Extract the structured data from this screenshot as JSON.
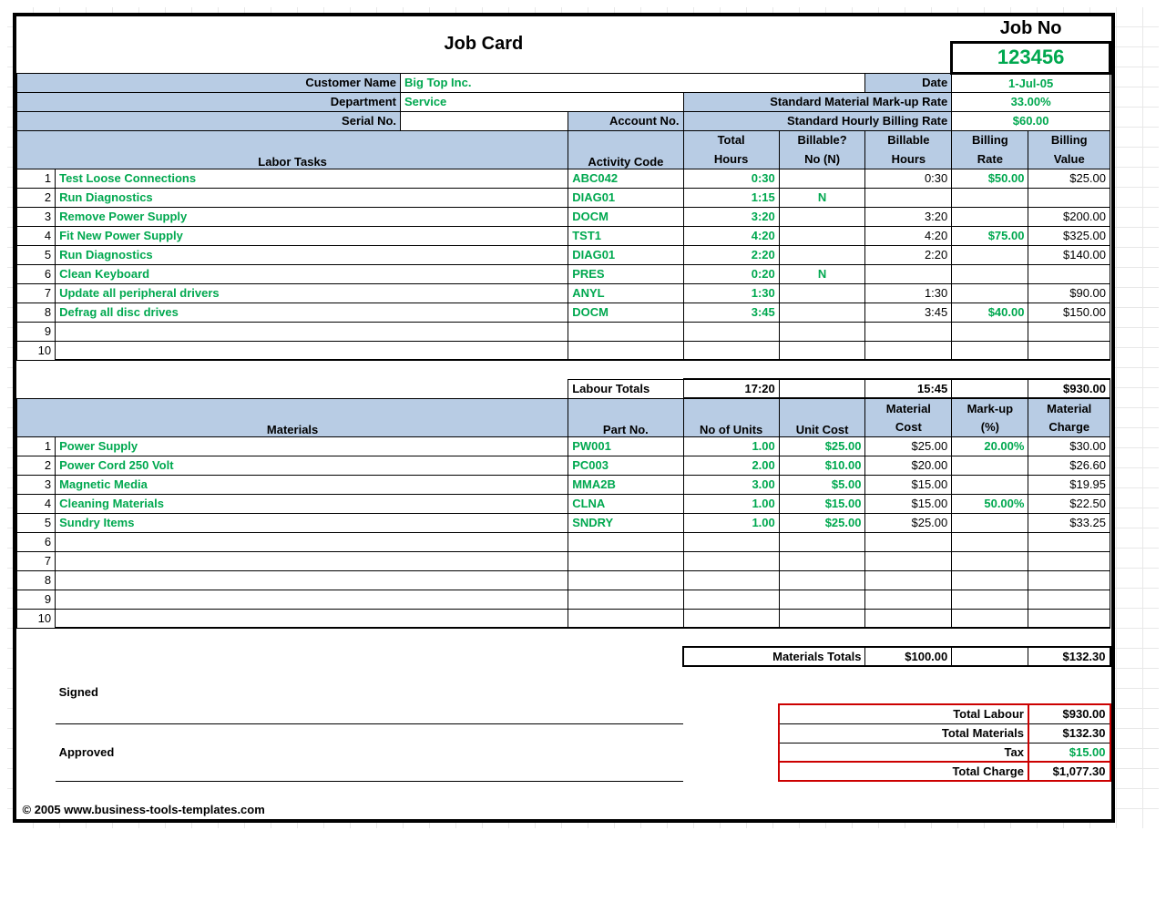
{
  "doc": {
    "title": "Job Card",
    "job_no_label": "Job No",
    "job_no": "123456",
    "copyright": "© 2005 www.business-tools-templates.com"
  },
  "fields": {
    "customer_name_label": "Customer Name",
    "customer_name": "Big Top Inc.",
    "department_label": "Department",
    "department": "Service",
    "serial_no_label": "Serial No.",
    "account_no_label": "Account No.",
    "date_label": "Date",
    "date": "1-Jul-05",
    "markup_rate_label": "Standard Material Mark-up Rate",
    "markup_rate": "33.00%",
    "hourly_rate_label": "Standard Hourly Billing Rate",
    "hourly_rate": "$60.00"
  },
  "labor": {
    "headers": {
      "tasks": "Labor Tasks",
      "activity_code": "Activity Code",
      "total_hours": "Total Hours",
      "billable_no_top": "Billable?",
      "billable_no_bot": "No (N)",
      "billable_hours": "Billable Hours",
      "billing_rate": "Billing Rate",
      "billing_value": "Billing Value"
    },
    "rows": [
      {
        "n": "1",
        "task": "Test Loose Connections",
        "code": "ABC042",
        "total": "0:30",
        "nob": "",
        "bill": "0:30",
        "rate": "$50.00",
        "val": "$25.00"
      },
      {
        "n": "2",
        "task": "Run Diagnostics",
        "code": "DIAG01",
        "total": "1:15",
        "nob": "N",
        "bill": "",
        "rate": "",
        "val": ""
      },
      {
        "n": "3",
        "task": "Remove Power Supply",
        "code": "DOCM",
        "total": "3:20",
        "nob": "",
        "bill": "3:20",
        "rate": "",
        "val": "$200.00"
      },
      {
        "n": "4",
        "task": "Fit New Power Supply",
        "code": "TST1",
        "total": "4:20",
        "nob": "",
        "bill": "4:20",
        "rate": "$75.00",
        "val": "$325.00"
      },
      {
        "n": "5",
        "task": "Run Diagnostics",
        "code": "DIAG01",
        "total": "2:20",
        "nob": "",
        "bill": "2:20",
        "rate": "",
        "val": "$140.00"
      },
      {
        "n": "6",
        "task": "Clean Keyboard",
        "code": "PRES",
        "total": "0:20",
        "nob": "N",
        "bill": "",
        "rate": "",
        "val": ""
      },
      {
        "n": "7",
        "task": "Update all peripheral drivers",
        "code": "ANYL",
        "total": "1:30",
        "nob": "",
        "bill": "1:30",
        "rate": "",
        "val": "$90.00"
      },
      {
        "n": "8",
        "task": "Defrag all disc drives",
        "code": "DOCM",
        "total": "3:45",
        "nob": "",
        "bill": "3:45",
        "rate": "$40.00",
        "val": "$150.00"
      },
      {
        "n": "9",
        "task": "",
        "code": "",
        "total": "",
        "nob": "",
        "bill": "",
        "rate": "",
        "val": ""
      },
      {
        "n": "10",
        "task": "",
        "code": "",
        "total": "",
        "nob": "",
        "bill": "",
        "rate": "",
        "val": ""
      }
    ],
    "totals_label": "Labour Totals",
    "totals": {
      "total": "17:20",
      "bill": "15:45",
      "val": "$930.00"
    }
  },
  "materials": {
    "headers": {
      "materials": "Materials",
      "part_no": "Part No.",
      "units": "No of Units",
      "unit_cost": "Unit Cost",
      "mat_cost_top": "Material",
      "mat_cost_bot": "Cost",
      "markup_top": "Mark-up",
      "markup_bot": "(%)",
      "charge_top": "Material",
      "charge_bot": "Charge"
    },
    "rows": [
      {
        "n": "1",
        "name": "Power Supply",
        "part": "PW001",
        "units": "1.00",
        "ucost": "$25.00",
        "mcost": "$25.00",
        "markup": "20.00%",
        "charge": "$30.00"
      },
      {
        "n": "2",
        "name": "Power Cord 250 Volt",
        "part": "PC003",
        "units": "2.00",
        "ucost": "$10.00",
        "mcost": "$20.00",
        "markup": "",
        "charge": "$26.60"
      },
      {
        "n": "3",
        "name": "Magnetic Media",
        "part": "MMA2B",
        "units": "3.00",
        "ucost": "$5.00",
        "mcost": "$15.00",
        "markup": "",
        "charge": "$19.95"
      },
      {
        "n": "4",
        "name": "Cleaning Materials",
        "part": "CLNA",
        "units": "1.00",
        "ucost": "$15.00",
        "mcost": "$15.00",
        "markup": "50.00%",
        "charge": "$22.50"
      },
      {
        "n": "5",
        "name": "Sundry Items",
        "part": "SNDRY",
        "units": "1.00",
        "ucost": "$25.00",
        "mcost": "$25.00",
        "markup": "",
        "charge": "$33.25"
      },
      {
        "n": "6",
        "name": "",
        "part": "",
        "units": "",
        "ucost": "",
        "mcost": "",
        "markup": "",
        "charge": ""
      },
      {
        "n": "7",
        "name": "",
        "part": "",
        "units": "",
        "ucost": "",
        "mcost": "",
        "markup": "",
        "charge": ""
      },
      {
        "n": "8",
        "name": "",
        "part": "",
        "units": "",
        "ucost": "",
        "mcost": "",
        "markup": "",
        "charge": ""
      },
      {
        "n": "9",
        "name": "",
        "part": "",
        "units": "",
        "ucost": "",
        "mcost": "",
        "markup": "",
        "charge": ""
      },
      {
        "n": "10",
        "name": "",
        "part": "",
        "units": "",
        "ucost": "",
        "mcost": "",
        "markup": "",
        "charge": ""
      }
    ],
    "totals_label": "Materials Totals",
    "totals": {
      "mcost": "$100.00",
      "charge": "$132.30"
    }
  },
  "signoff": {
    "signed": "Signed",
    "approved": "Approved"
  },
  "summary": {
    "total_labour_label": "Total Labour",
    "total_labour": "$930.00",
    "total_materials_label": "Total Materials",
    "total_materials": "$132.30",
    "tax_label": "Tax",
    "tax": "$15.00",
    "total_charge_label": "Total Charge",
    "total_charge": "$1,077.30"
  },
  "colors": {
    "header_bg": "#b8cce4",
    "input_green": "#00a84f",
    "redbox": "#cc0000"
  }
}
